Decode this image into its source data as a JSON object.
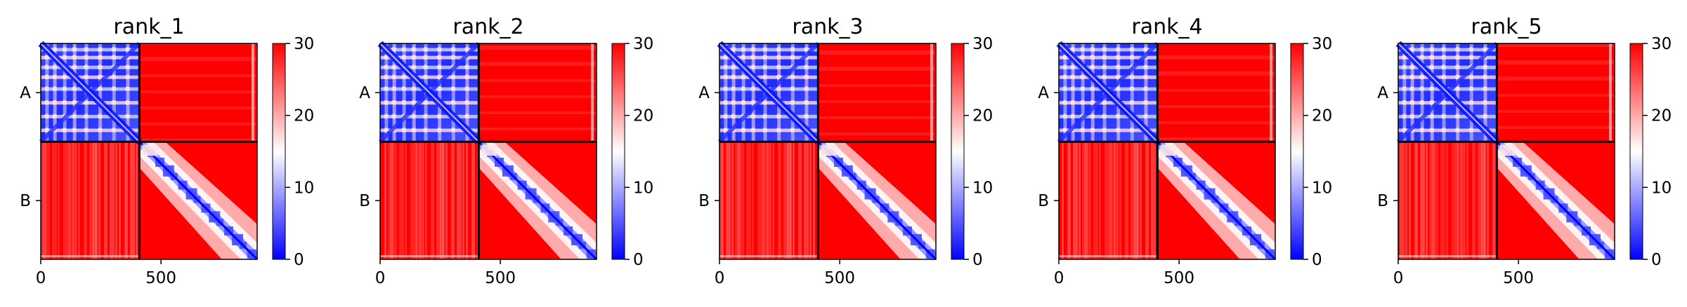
{
  "chart_data": {
    "type": "heatmap",
    "colormap": {
      "name": "bwr",
      "low": "#0000ff",
      "mid": "#ffffff",
      "high": "#ff0000"
    },
    "color_range": [
      0,
      30
    ],
    "colorbar_ticks": [
      "0",
      "10",
      "20",
      "30"
    ],
    "x_range": [
      0,
      900
    ],
    "x_ticks": [
      {
        "value": 0,
        "label": "0"
      },
      {
        "value": 500,
        "label": "500"
      }
    ],
    "chain_boundary": 410,
    "chains": [
      {
        "label": "A",
        "start": 0,
        "end": 410
      },
      {
        "label": "B",
        "start": 410,
        "end": 900
      }
    ],
    "panels": [
      {
        "title": "rank_1"
      },
      {
        "title": "rank_2"
      },
      {
        "title": "rank_3"
      },
      {
        "title": "rank_4"
      },
      {
        "title": "rank_5"
      }
    ]
  }
}
